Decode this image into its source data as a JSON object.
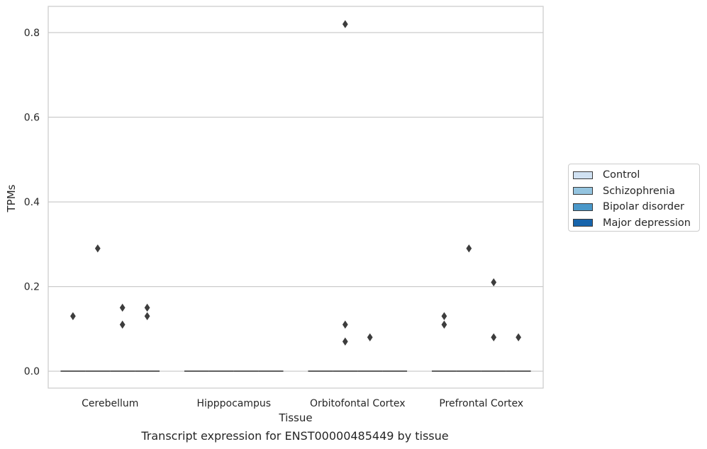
{
  "chart_data": {
    "type": "box",
    "title": "Transcript expression for ENST00000485449 by tissue",
    "xlabel": "Tissue",
    "ylabel": "TPMs",
    "categories": [
      "Cerebellum",
      "Hipppocampus",
      "Orbitofontal Cortex",
      "Prefrontal Cortex"
    ],
    "ylim": [
      -0.04,
      0.862
    ],
    "yticks": [
      0.0,
      0.2,
      0.4,
      0.6,
      0.8
    ],
    "ytick_labels": [
      "0.0",
      "0.2",
      "0.4",
      "0.6",
      "0.8"
    ],
    "grid": "horizontal",
    "legend_position": "right",
    "series": [
      {
        "name": "Control",
        "color": "#d0e1f2",
        "median": [
          0,
          0,
          0,
          0
        ],
        "outliers": [
          [
            0.13
          ],
          [],
          [],
          [
            0.13,
            0.11
          ]
        ]
      },
      {
        "name": "Schizophrenia",
        "color": "#94c4df",
        "median": [
          0,
          0,
          0,
          0
        ],
        "outliers": [
          [
            0.29
          ],
          [],
          [
            0.82,
            0.11,
            0.07
          ],
          [
            0.29
          ]
        ]
      },
      {
        "name": "Bipolar disorder",
        "color": "#4a98c9",
        "median": [
          0,
          0,
          0,
          0
        ],
        "outliers": [
          [
            0.15,
            0.11
          ],
          [],
          [
            0.08
          ],
          [
            0.21,
            0.08
          ]
        ]
      },
      {
        "name": "Major depression",
        "color": "#1764ab",
        "median": [
          0,
          0,
          0,
          0
        ],
        "outliers": [
          [
            0.15,
            0.13
          ],
          [],
          [],
          [
            0.08
          ]
        ]
      }
    ]
  }
}
